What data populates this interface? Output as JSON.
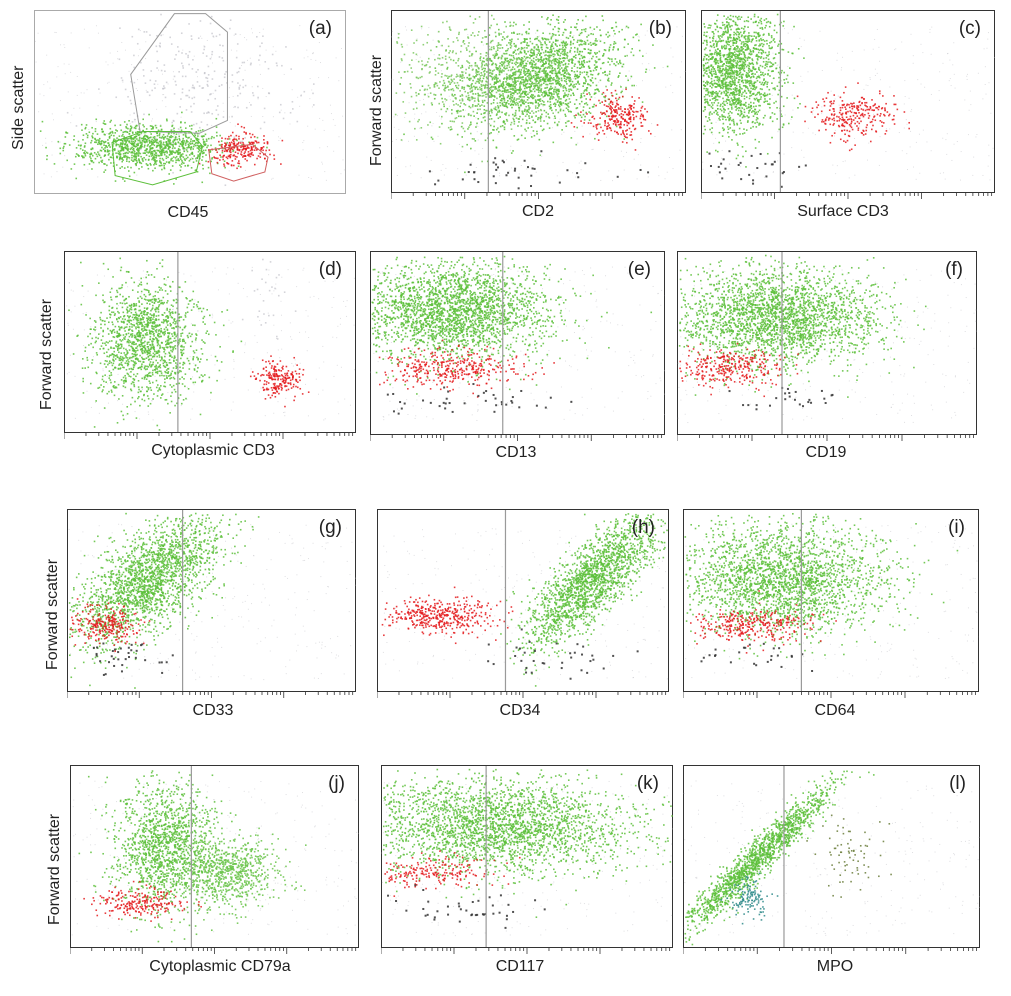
{
  "figure": {
    "y_labels": {
      "side_scatter": "Side scatter",
      "forward_scatter": "Forward scatter"
    }
  },
  "colors": {
    "main_population": "#5cbf3a",
    "lymphocytes": "#e41a1c",
    "debris": "#333333",
    "background_events": "#b8b8bf",
    "gate_line": "#9a9a9a",
    "axis": "#333333"
  },
  "chart_data": [
    {
      "id": "a",
      "panel_label": "(a)",
      "xlabel": "CD45",
      "ylabel": "Side scatter",
      "type": "scatter",
      "gates": [
        "polygon-gray",
        "polygon-green",
        "polygon-red"
      ],
      "series": [
        {
          "name": "green",
          "cx": 0.36,
          "cy": 0.26,
          "sx": 0.12,
          "sy": 0.06,
          "n": 1100
        },
        {
          "name": "red",
          "cx": 0.66,
          "cy": 0.25,
          "sx": 0.05,
          "sy": 0.04,
          "n": 220
        },
        {
          "name": "gray",
          "cx": 0.52,
          "cy": 0.62,
          "sx": 0.14,
          "sy": 0.18,
          "n": 260
        }
      ]
    },
    {
      "id": "b",
      "panel_label": "(b)",
      "xlabel": "CD2",
      "ylabel": "Forward scatter",
      "type": "scatter",
      "threshold_x": 0.33,
      "series": [
        {
          "name": "green",
          "cx": 0.5,
          "cy": 0.64,
          "sx": 0.13,
          "sy": 0.14,
          "n": 1800,
          "rot": 0.6
        },
        {
          "name": "green-wide",
          "cx": 0.3,
          "cy": 0.62,
          "sx": 0.16,
          "sy": 0.16,
          "n": 700
        },
        {
          "name": "red",
          "cx": 0.76,
          "cy": 0.42,
          "sx": 0.05,
          "sy": 0.06,
          "n": 240
        },
        {
          "name": "debris",
          "cx": 0.42,
          "cy": 0.12,
          "sx": 0.16,
          "sy": 0.05,
          "n": 40
        }
      ]
    },
    {
      "id": "c",
      "panel_label": "(c)",
      "xlabel": "Surface CD3",
      "ylabel": "",
      "type": "scatter",
      "threshold_x": 0.27,
      "series": [
        {
          "name": "green",
          "cx": 0.11,
          "cy": 0.68,
          "sx": 0.08,
          "sy": 0.17,
          "n": 1700
        },
        {
          "name": "red",
          "cx": 0.51,
          "cy": 0.43,
          "sx": 0.07,
          "sy": 0.06,
          "n": 260
        },
        {
          "name": "debris",
          "cx": 0.15,
          "cy": 0.14,
          "sx": 0.08,
          "sy": 0.05,
          "n": 30
        }
      ]
    },
    {
      "id": "d",
      "panel_label": "(d)",
      "xlabel": "Cytoplasmic CD3",
      "ylabel": "Forward scatter",
      "type": "scatter",
      "threshold_x": 0.39,
      "series": [
        {
          "name": "green",
          "cx": 0.28,
          "cy": 0.51,
          "sx": 0.09,
          "sy": 0.16,
          "n": 1400
        },
        {
          "name": "red",
          "cx": 0.73,
          "cy": 0.3,
          "sx": 0.04,
          "sy": 0.05,
          "n": 200
        },
        {
          "name": "gray",
          "cx": 0.7,
          "cy": 0.72,
          "sx": 0.03,
          "sy": 0.14,
          "n": 30
        }
      ]
    },
    {
      "id": "e",
      "panel_label": "(e)",
      "xlabel": "CD13",
      "ylabel": "",
      "type": "scatter",
      "threshold_x": 0.45,
      "series": [
        {
          "name": "green",
          "cx": 0.28,
          "cy": 0.68,
          "sx": 0.17,
          "sy": 0.13,
          "n": 2400
        },
        {
          "name": "red",
          "cx": 0.27,
          "cy": 0.37,
          "sx": 0.12,
          "sy": 0.05,
          "n": 350
        },
        {
          "name": "debris",
          "cx": 0.35,
          "cy": 0.18,
          "sx": 0.14,
          "sy": 0.05,
          "n": 40
        }
      ]
    },
    {
      "id": "f",
      "panel_label": "(f)",
      "xlabel": "CD19",
      "ylabel": "",
      "type": "scatter",
      "threshold_x": 0.35,
      "series": [
        {
          "name": "green",
          "cx": 0.33,
          "cy": 0.65,
          "sx": 0.17,
          "sy": 0.13,
          "n": 2400
        },
        {
          "name": "red",
          "cx": 0.18,
          "cy": 0.37,
          "sx": 0.09,
          "sy": 0.05,
          "n": 300
        },
        {
          "name": "debris",
          "cx": 0.35,
          "cy": 0.2,
          "sx": 0.1,
          "sy": 0.04,
          "n": 25
        }
      ]
    },
    {
      "id": "g",
      "panel_label": "(g)",
      "xlabel": "CD33",
      "ylabel": "Forward scatter",
      "type": "scatter",
      "threshold_x": 0.4,
      "series": [
        {
          "name": "green",
          "cx": 0.28,
          "cy": 0.62,
          "sx": 0.1,
          "sy": 0.18,
          "n": 2000,
          "rot": 0.9
        },
        {
          "name": "red",
          "cx": 0.13,
          "cy": 0.37,
          "sx": 0.06,
          "sy": 0.05,
          "n": 250
        },
        {
          "name": "debris",
          "cx": 0.2,
          "cy": 0.19,
          "sx": 0.08,
          "sy": 0.05,
          "n": 35
        }
      ]
    },
    {
      "id": "h",
      "panel_label": "(h)",
      "xlabel": "CD34",
      "ylabel": "",
      "type": "scatter",
      "threshold_x": 0.44,
      "series": [
        {
          "name": "green",
          "cx": 0.74,
          "cy": 0.62,
          "sx": 0.07,
          "sy": 0.18,
          "n": 1800,
          "rot": 1.0
        },
        {
          "name": "red",
          "cx": 0.22,
          "cy": 0.42,
          "sx": 0.1,
          "sy": 0.05,
          "n": 400
        },
        {
          "name": "debris",
          "cx": 0.6,
          "cy": 0.2,
          "sx": 0.12,
          "sy": 0.06,
          "n": 35
        }
      ]
    },
    {
      "id": "i",
      "panel_label": "(i)",
      "xlabel": "CD64",
      "ylabel": "",
      "type": "scatter",
      "threshold_x": 0.4,
      "series": [
        {
          "name": "green",
          "cx": 0.33,
          "cy": 0.62,
          "sx": 0.17,
          "sy": 0.15,
          "n": 2300
        },
        {
          "name": "red",
          "cx": 0.23,
          "cy": 0.37,
          "sx": 0.09,
          "sy": 0.05,
          "n": 300
        },
        {
          "name": "debris",
          "cx": 0.25,
          "cy": 0.2,
          "sx": 0.1,
          "sy": 0.04,
          "n": 25
        }
      ]
    },
    {
      "id": "j",
      "panel_label": "(j)",
      "xlabel": "Cytoplasmic CD79a",
      "ylabel": "Forward scatter",
      "type": "scatter",
      "threshold_x": 0.42,
      "series": [
        {
          "name": "green",
          "cx": 0.32,
          "cy": 0.55,
          "sx": 0.09,
          "sy": 0.17,
          "n": 1400
        },
        {
          "name": "green-2",
          "cx": 0.55,
          "cy": 0.42,
          "sx": 0.08,
          "sy": 0.1,
          "n": 700
        },
        {
          "name": "red",
          "cx": 0.24,
          "cy": 0.25,
          "sx": 0.08,
          "sy": 0.04,
          "n": 220
        }
      ]
    },
    {
      "id": "k",
      "panel_label": "(k)",
      "xlabel": "CD117",
      "ylabel": "",
      "type": "scatter",
      "threshold_x": 0.36,
      "series": [
        {
          "name": "green",
          "cx": 0.38,
          "cy": 0.67,
          "sx": 0.24,
          "sy": 0.13,
          "n": 2600
        },
        {
          "name": "red",
          "cx": 0.18,
          "cy": 0.42,
          "sx": 0.1,
          "sy": 0.04,
          "n": 200
        },
        {
          "name": "debris",
          "cx": 0.3,
          "cy": 0.22,
          "sx": 0.12,
          "sy": 0.05,
          "n": 40
        }
      ]
    },
    {
      "id": "l",
      "panel_label": "(l)",
      "xlabel": "MPO",
      "ylabel": "",
      "type": "scatter",
      "threshold_x": 0.34,
      "series": [
        {
          "name": "green",
          "cx": 0.24,
          "cy": 0.48,
          "sx": 0.035,
          "sy": 0.22,
          "n": 1500,
          "rot": 1.2
        },
        {
          "name": "teal",
          "cx": 0.22,
          "cy": 0.28,
          "sx": 0.03,
          "sy": 0.05,
          "n": 120
        },
        {
          "name": "sparse",
          "cx": 0.57,
          "cy": 0.53,
          "sx": 0.06,
          "sy": 0.1,
          "n": 70
        }
      ]
    }
  ]
}
